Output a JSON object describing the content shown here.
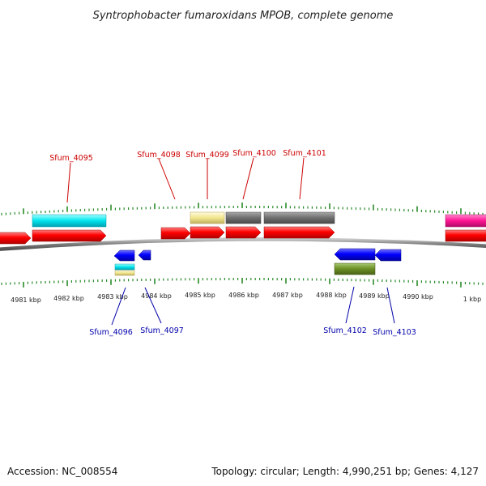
{
  "title": "Syntrophobacter fumaroxidans MPOB, complete genome",
  "footer": {
    "accession": "Accession: NC_008554",
    "summary": "Topology: circular; Length: 4,990,251 bp; Genes: 4,127"
  },
  "colors": {
    "forward_label": "#cc0000",
    "reverse_label": "#0000aa",
    "tick": "#2a8a2a",
    "backbone": "#8a8a8a",
    "cds": "#ff0000",
    "blue_feature": "#0000ff",
    "cyan_feature": "#00e5ee",
    "khaki_feature": "#f0e68c",
    "gray_feature": "#707070",
    "olive_feature": "#6b8e23",
    "magenta_feature": "#ff1493"
  },
  "scale": {
    "tick_labels": [
      "4981 kbp",
      "4982 kbp",
      "4983 kbp",
      "4984 kbp",
      "4985 kbp",
      "4986 kbp",
      "4987 kbp",
      "4988 kbp",
      "4989 kbp",
      "4990 kbp",
      "1 kbp"
    ]
  },
  "genes_top": [
    {
      "label": "Sfum_4095"
    },
    {
      "label": "Sfum_4098"
    },
    {
      "label": "Sfum_4099"
    },
    {
      "label": "Sfum_4100"
    },
    {
      "label": "Sfum_4101"
    }
  ],
  "genes_bottom": [
    {
      "label": "Sfum_4096"
    },
    {
      "label": "Sfum_4097"
    },
    {
      "label": "Sfum_4102"
    },
    {
      "label": "Sfum_4103"
    }
  ]
}
